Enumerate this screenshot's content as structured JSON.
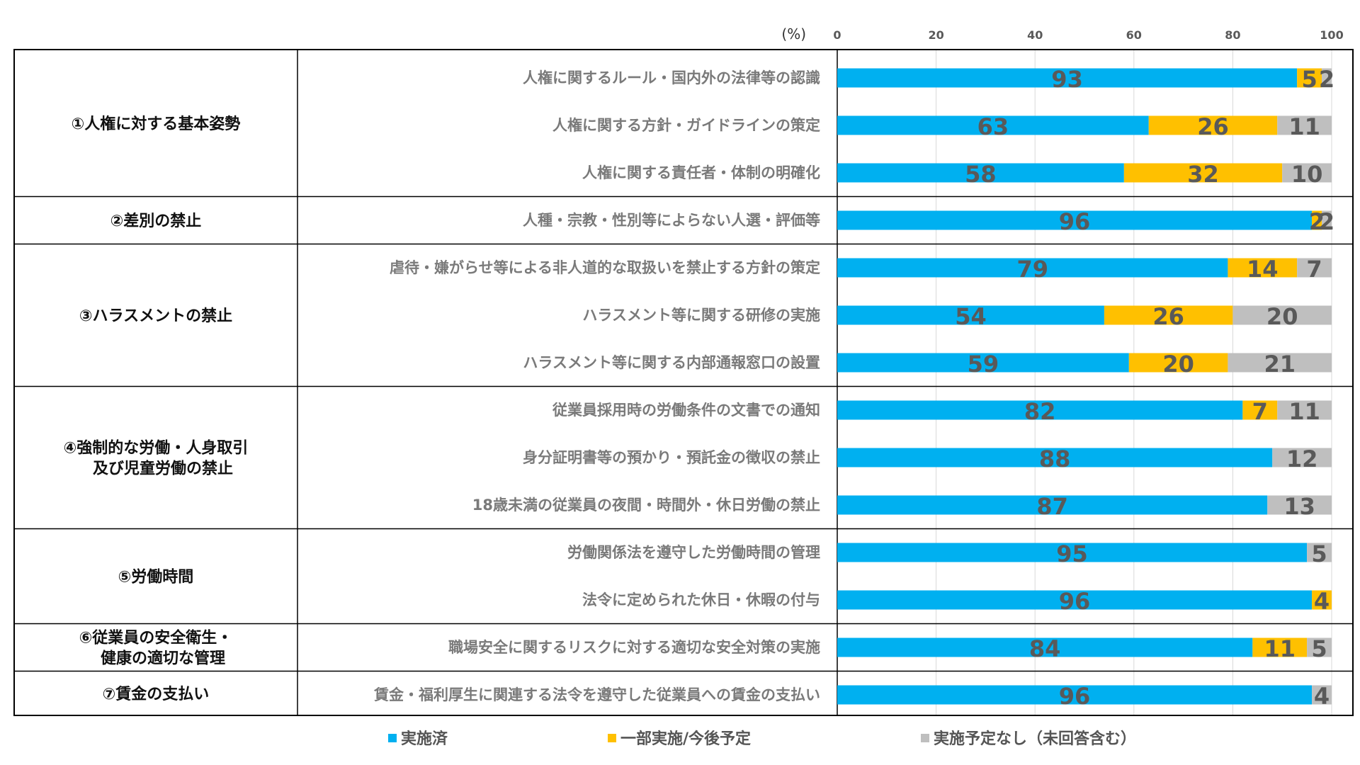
{
  "chart_data": {
    "type": "bar",
    "stacked": true,
    "orientation": "horizontal",
    "unit_label": "(%)",
    "xlim": [
      0,
      100
    ],
    "xticks": [
      "0",
      "20",
      "40",
      "60",
      "80",
      "100"
    ],
    "colors": {
      "implemented": "#00b0f0",
      "partial": "#ffc000",
      "none": "#bfbfbf"
    },
    "legend": [
      "実施済",
      "一部実施/今後予定",
      "実施予定なし（未回答含む）"
    ],
    "groups": [
      {
        "label": [
          "①人権に対する基本姿勢"
        ],
        "start": 0,
        "count": 3
      },
      {
        "label": [
          "②差別の禁止"
        ],
        "start": 3,
        "count": 1
      },
      {
        "label": [
          "③ハラスメントの禁止"
        ],
        "start": 4,
        "count": 3
      },
      {
        "label": [
          "④強制的な労働・人身取引",
          "及び児童労働の禁止"
        ],
        "start": 7,
        "count": 3
      },
      {
        "label": [
          "⑤労働時間"
        ],
        "start": 10,
        "count": 2
      },
      {
        "label": [
          "⑥従業員の安全衛生・",
          "健康の適切な管理"
        ],
        "start": 12,
        "count": 1
      },
      {
        "label": [
          "⑦賃金の支払い"
        ],
        "start": 13,
        "count": 1
      }
    ],
    "categories": [
      "人権に関するルール・国内外の法律等の認識",
      "人権に関する方針・ガイドラインの策定",
      "人権に関する責任者・体制の明確化",
      "人種・宗教・性別等によらない人選・評価等",
      "虐待・嫌がらせ等による非人道的な取扱いを禁止する方針の策定",
      "ハラスメント等に関する研修の実施",
      "ハラスメント等に関する内部通報窓口の設置",
      "従業員採用時の労働条件の文書での通知",
      "身分証明書等の預かり・預託金の徴収の禁止",
      "18歳未満の従業員の夜間・時間外・休日労働の禁止",
      "労働関係法を遵守した労働時間の管理",
      "法令に定められた休日・休暇の付与",
      "職場安全に関するリスクに対する適切な安全対策の実施",
      "賃金・福利厚生に関連する法令を遵守した従業員への賃金の支払い"
    ],
    "series": [
      {
        "name": "実施済",
        "values": [
          93,
          63,
          58,
          96,
          79,
          54,
          59,
          82,
          88,
          87,
          95,
          96,
          84,
          96
        ]
      },
      {
        "name": "一部実施/今後予定",
        "values": [
          5,
          26,
          32,
          2,
          14,
          26,
          20,
          7,
          0,
          0,
          0,
          4,
          11,
          0
        ]
      },
      {
        "name": "実施予定なし（未回答含む）",
        "values": [
          2,
          11,
          10,
          2,
          7,
          20,
          21,
          11,
          12,
          13,
          5,
          0,
          5,
          4
        ]
      }
    ]
  }
}
